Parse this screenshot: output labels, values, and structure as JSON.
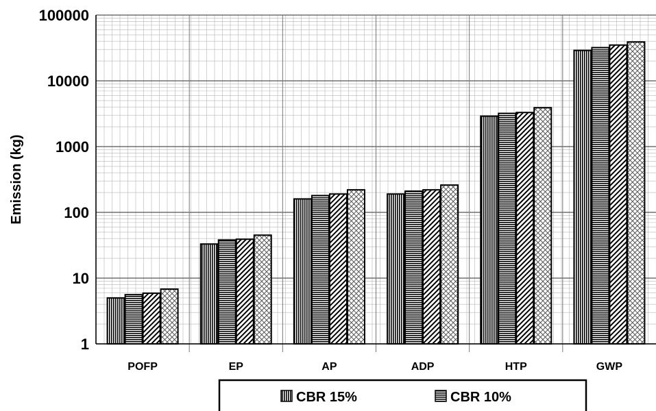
{
  "chart_data": {
    "type": "bar",
    "title": "",
    "xlabel": "",
    "ylabel": "Emission (kg)",
    "yscale": "log",
    "ylim": [
      1,
      100000
    ],
    "y_ticks": [
      "1",
      "10",
      "100",
      "1000",
      "10000",
      "100000"
    ],
    "grid": true,
    "legend_position": "bottom",
    "categories": [
      "POFP",
      "EP",
      "AP",
      "ADP",
      "HTP",
      "GWP"
    ],
    "series": [
      {
        "name": "CBR 15%",
        "pattern": "vertical-lines",
        "values": [
          5,
          33,
          160,
          190,
          2900,
          29000
        ]
      },
      {
        "name": "CBR 10%",
        "pattern": "horizontal-lines",
        "values": [
          5.6,
          38,
          180,
          210,
          3200,
          32000
        ]
      },
      {
        "name": "",
        "pattern": "diagonal-lines",
        "values": [
          5.9,
          39,
          190,
          220,
          3300,
          35000
        ]
      },
      {
        "name": "",
        "pattern": "crosshatch",
        "values": [
          6.8,
          45,
          220,
          260,
          3900,
          39000
        ]
      }
    ],
    "colors": {
      "bar_stroke": "#000000",
      "bar_fill": "#ffffff",
      "grid": "#b5b5b5"
    }
  }
}
